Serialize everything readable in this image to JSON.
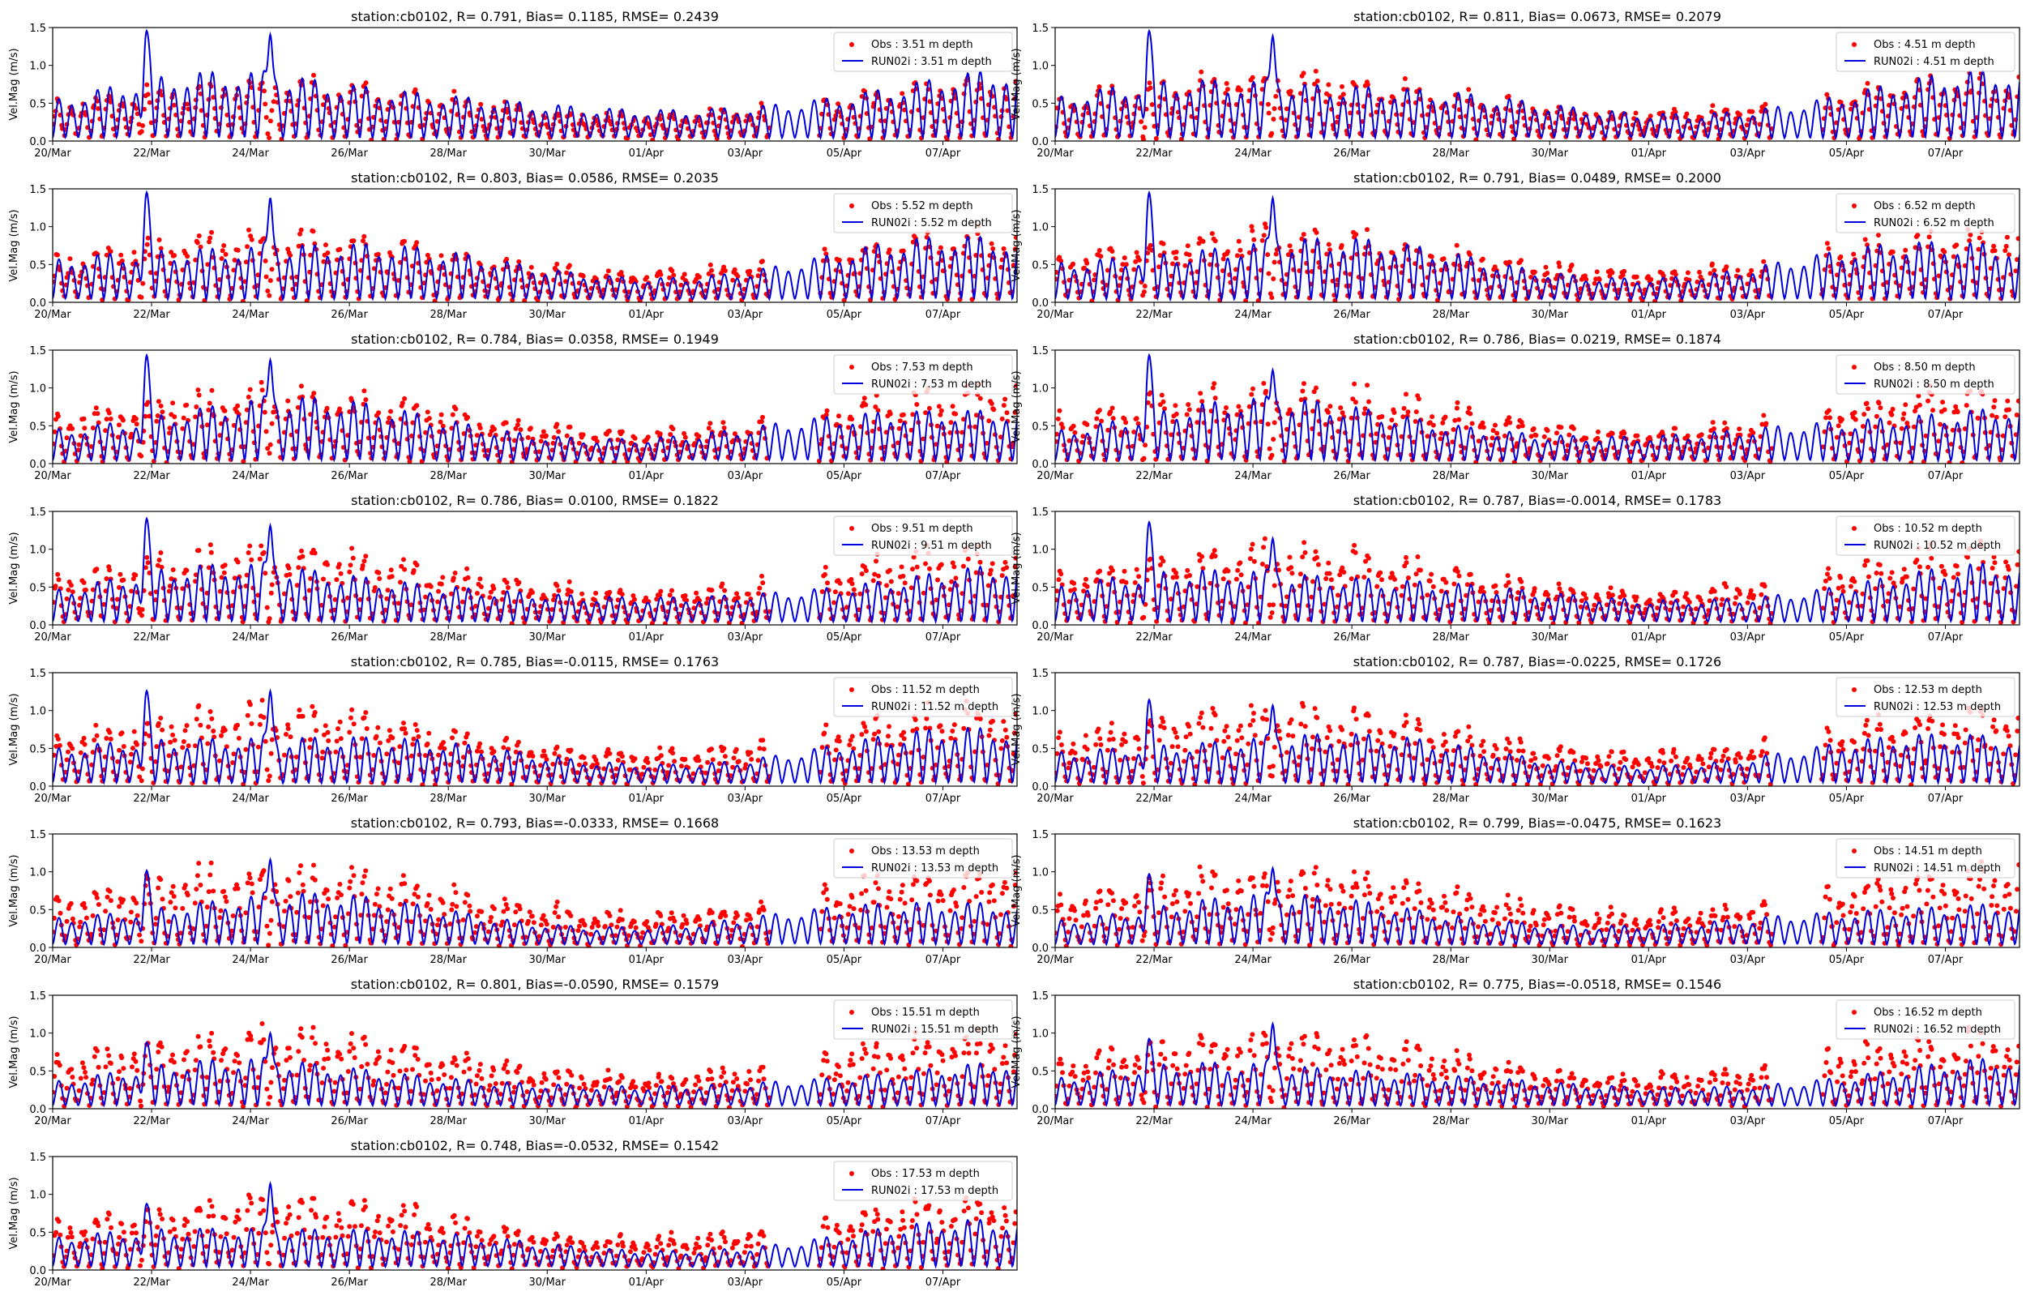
{
  "figure": {
    "time_axis": {
      "start": "2023-03-20",
      "end": "2023-04-08T12:00",
      "tick_labels": [
        "20/Mar",
        "22/Mar",
        "24/Mar",
        "26/Mar",
        "28/Mar",
        "30/Mar",
        "01/Apr",
        "03/Apr",
        "05/Apr",
        "07/Apr"
      ]
    },
    "colors": {
      "obs": "#ff0000",
      "model": "#0000dd"
    }
  },
  "chart_data": [
    {
      "type": "line",
      "title": "station:cb0102, R= 0.791, Bias= 0.1185, RMSE= 0.2439",
      "ylabel": "Vel.Mag (m/s)",
      "ylim": [
        0,
        1.5
      ],
      "yticks": [
        "0.0",
        "0.5",
        "1.0",
        "1.5"
      ],
      "series": [
        {
          "name": "Obs : 3.51 m depth",
          "style": "markers",
          "color": "#ff0000",
          "amplitude": 0.5,
          "spikes": []
        },
        {
          "name": "RUN02i : 3.51 m depth",
          "style": "line",
          "color": "#0000dd",
          "amplitude": 0.62,
          "spikes": [
            {
              "day": 1.9,
              "value": 1.5
            },
            {
              "day": 4.4,
              "value": 1.48
            }
          ]
        }
      ]
    },
    {
      "type": "line",
      "title": "station:cb0102, R= 0.811, Bias= 0.0673, RMSE= 0.2079",
      "ylabel": "Vel.Mag (m/s)",
      "ylim": [
        0,
        1.5
      ],
      "yticks": [
        "0.0",
        "0.5",
        "1.0",
        "1.5"
      ],
      "series": [
        {
          "name": "Obs : 4.51 m depth",
          "style": "markers",
          "color": "#ff0000",
          "amplitude": 0.55,
          "spikes": []
        },
        {
          "name": "RUN02i : 4.51 m depth",
          "style": "line",
          "color": "#0000dd",
          "amplitude": 0.6,
          "spikes": [
            {
              "day": 1.9,
              "value": 1.5
            },
            {
              "day": 4.4,
              "value": 1.46
            }
          ]
        }
      ]
    },
    {
      "type": "line",
      "title": "station:cb0102, R= 0.803, Bias= 0.0586, RMSE= 0.2035",
      "ylabel": "Vel.Mag (m/s)",
      "ylim": [
        0,
        1.5
      ],
      "yticks": [
        "0.0",
        "0.5",
        "1.0",
        "1.5"
      ],
      "series": [
        {
          "name": "Obs : 5.52 m depth",
          "style": "markers",
          "color": "#ff0000",
          "amplitude": 0.58,
          "spikes": []
        },
        {
          "name": "RUN02i : 5.52 m depth",
          "style": "line",
          "color": "#0000dd",
          "amplitude": 0.58,
          "spikes": [
            {
              "day": 1.9,
              "value": 1.5
            },
            {
              "day": 4.4,
              "value": 1.45
            }
          ]
        }
      ]
    },
    {
      "type": "line",
      "title": "station:cb0102, R= 0.791, Bias= 0.0489, RMSE= 0.2000",
      "ylabel": "Vel.Mag (m/s)",
      "ylim": [
        0,
        1.5
      ],
      "yticks": [
        "0.0",
        "0.5",
        "1.0",
        "1.5"
      ],
      "series": [
        {
          "name": "Obs : 6.52 m depth",
          "style": "markers",
          "color": "#ff0000",
          "amplitude": 0.6,
          "spikes": []
        },
        {
          "name": "RUN02i : 6.52 m depth",
          "style": "line",
          "color": "#0000dd",
          "amplitude": 0.58,
          "spikes": [
            {
              "day": 1.9,
              "value": 1.5
            },
            {
              "day": 4.4,
              "value": 1.45
            }
          ]
        }
      ]
    },
    {
      "type": "line",
      "title": "station:cb0102, R= 0.784, Bias= 0.0358, RMSE= 0.1949",
      "ylabel": "Vel.Mag (m/s)",
      "ylim": [
        0,
        1.5
      ],
      "yticks": [
        "0.0",
        "0.5",
        "1.0",
        "1.5"
      ],
      "series": [
        {
          "name": "Obs : 7.53 m depth",
          "style": "markers",
          "color": "#ff0000",
          "amplitude": 0.62,
          "spikes": []
        },
        {
          "name": "RUN02i : 7.53 m depth",
          "style": "line",
          "color": "#0000dd",
          "amplitude": 0.56,
          "spikes": [
            {
              "day": 1.9,
              "value": 1.48
            },
            {
              "day": 4.4,
              "value": 1.44
            }
          ]
        }
      ]
    },
    {
      "type": "line",
      "title": "station:cb0102, R= 0.786, Bias= 0.0219, RMSE= 0.1874",
      "ylabel": "Vel.Mag (m/s)",
      "ylim": [
        0,
        1.5
      ],
      "yticks": [
        "0.0",
        "0.5",
        "1.0",
        "1.5"
      ],
      "series": [
        {
          "name": "Obs : 8.50 m depth",
          "style": "markers",
          "color": "#ff0000",
          "amplitude": 0.63,
          "spikes": []
        },
        {
          "name": "RUN02i : 8.50 m depth",
          "style": "line",
          "color": "#0000dd",
          "amplitude": 0.55,
          "spikes": [
            {
              "day": 1.9,
              "value": 1.48
            },
            {
              "day": 4.4,
              "value": 1.3
            }
          ]
        }
      ]
    },
    {
      "type": "line",
      "title": "station:cb0102, R= 0.786, Bias= 0.0100, RMSE= 0.1822",
      "ylabel": "Vel.Mag (m/s)",
      "ylim": [
        0,
        1.5
      ],
      "yticks": [
        "0.0",
        "0.5",
        "1.0",
        "1.5"
      ],
      "series": [
        {
          "name": "Obs : 9.51 m depth",
          "style": "markers",
          "color": "#ff0000",
          "amplitude": 0.64,
          "spikes": []
        },
        {
          "name": "RUN02i : 9.51 m depth",
          "style": "line",
          "color": "#0000dd",
          "amplitude": 0.53,
          "spikes": [
            {
              "day": 1.9,
              "value": 1.45
            },
            {
              "day": 4.4,
              "value": 1.38
            }
          ]
        }
      ]
    },
    {
      "type": "line",
      "title": "station:cb0102, R= 0.787, Bias=-0.0014, RMSE= 0.1783",
      "ylabel": "Vel.Mag (m/s)",
      "ylim": [
        0,
        1.5
      ],
      "yticks": [
        "0.0",
        "0.5",
        "1.0",
        "1.5"
      ],
      "series": [
        {
          "name": "Obs : 10.52 m depth",
          "style": "markers",
          "color": "#ff0000",
          "amplitude": 0.65,
          "spikes": []
        },
        {
          "name": "RUN02i : 10.52 m depth",
          "style": "line",
          "color": "#0000dd",
          "amplitude": 0.52,
          "spikes": [
            {
              "day": 1.9,
              "value": 1.4
            },
            {
              "day": 4.4,
              "value": 1.2
            }
          ]
        }
      ]
    },
    {
      "type": "line",
      "title": "station:cb0102, R= 0.785, Bias=-0.0115, RMSE= 0.1763",
      "ylabel": "Vel.Mag (m/s)",
      "ylim": [
        0,
        1.5
      ],
      "yticks": [
        "0.0",
        "0.5",
        "1.0",
        "1.5"
      ],
      "series": [
        {
          "name": "Obs : 11.52 m depth",
          "style": "markers",
          "color": "#ff0000",
          "amplitude": 0.66,
          "spikes": []
        },
        {
          "name": "RUN02i : 11.52 m depth",
          "style": "line",
          "color": "#0000dd",
          "amplitude": 0.5,
          "spikes": [
            {
              "day": 1.9,
              "value": 1.3
            },
            {
              "day": 4.4,
              "value": 1.32
            }
          ]
        }
      ]
    },
    {
      "type": "line",
      "title": "station:cb0102, R= 0.787, Bias=-0.0225, RMSE= 0.1726",
      "ylabel": "Vel.Mag (m/s)",
      "ylim": [
        0,
        1.5
      ],
      "yticks": [
        "0.0",
        "0.5",
        "1.0",
        "1.5"
      ],
      "series": [
        {
          "name": "Obs : 12.53 m depth",
          "style": "markers",
          "color": "#ff0000",
          "amplitude": 0.66,
          "spikes": []
        },
        {
          "name": "RUN02i : 12.53 m depth",
          "style": "line",
          "color": "#0000dd",
          "amplitude": 0.48,
          "spikes": [
            {
              "day": 1.9,
              "value": 1.18
            },
            {
              "day": 4.4,
              "value": 1.12
            }
          ]
        }
      ]
    },
    {
      "type": "line",
      "title": "station:cb0102, R= 0.793, Bias=-0.0333, RMSE= 0.1668",
      "ylabel": "Vel.Mag (m/s)",
      "ylim": [
        0,
        1.5
      ],
      "yticks": [
        "0.0",
        "0.5",
        "1.0",
        "1.5"
      ],
      "series": [
        {
          "name": "Obs : 13.53 m depth",
          "style": "markers",
          "color": "#ff0000",
          "amplitude": 0.66,
          "spikes": []
        },
        {
          "name": "RUN02i : 13.53 m depth",
          "style": "line",
          "color": "#0000dd",
          "amplitude": 0.46,
          "spikes": [
            {
              "day": 1.9,
              "value": 1.05
            },
            {
              "day": 4.4,
              "value": 1.22
            }
          ]
        }
      ]
    },
    {
      "type": "line",
      "title": "station:cb0102, R= 0.799, Bias=-0.0475, RMSE= 0.1623",
      "ylabel": "Vel.Mag (m/s)",
      "ylim": [
        0,
        1.5
      ],
      "yticks": [
        "0.0",
        "0.5",
        "1.0",
        "1.5"
      ],
      "series": [
        {
          "name": "Obs : 14.51 m depth",
          "style": "markers",
          "color": "#ff0000",
          "amplitude": 0.66,
          "spikes": []
        },
        {
          "name": "RUN02i : 14.51 m depth",
          "style": "line",
          "color": "#0000dd",
          "amplitude": 0.44,
          "spikes": [
            {
              "day": 1.9,
              "value": 1.0
            },
            {
              "day": 4.4,
              "value": 1.1
            }
          ]
        }
      ]
    },
    {
      "type": "line",
      "title": "station:cb0102, R= 0.801, Bias=-0.0590, RMSE= 0.1579",
      "ylabel": "Vel.Mag (m/s)",
      "ylim": [
        0,
        1.5
      ],
      "yticks": [
        "0.0",
        "0.5",
        "1.0",
        "1.5"
      ],
      "series": [
        {
          "name": "Obs : 15.51 m depth",
          "style": "markers",
          "color": "#ff0000",
          "amplitude": 0.64,
          "spikes": []
        },
        {
          "name": "RUN02i : 15.51 m depth",
          "style": "line",
          "color": "#0000dd",
          "amplitude": 0.42,
          "spikes": [
            {
              "day": 1.9,
              "value": 0.9
            },
            {
              "day": 4.4,
              "value": 1.05
            }
          ]
        }
      ]
    },
    {
      "type": "line",
      "title": "station:cb0102, R= 0.775, Bias=-0.0518, RMSE= 0.1546",
      "ylabel": "Vel.Mag (m/s)",
      "ylim": [
        0,
        1.5
      ],
      "yticks": [
        "0.0",
        "0.5",
        "1.0",
        "1.5"
      ],
      "series": [
        {
          "name": "Obs : 16.52 m depth",
          "style": "markers",
          "color": "#ff0000",
          "amplitude": 0.62,
          "spikes": []
        },
        {
          "name": "RUN02i : 16.52 m depth",
          "style": "line",
          "color": "#0000dd",
          "amplitude": 0.42,
          "spikes": [
            {
              "day": 1.9,
              "value": 0.95
            },
            {
              "day": 4.4,
              "value": 1.18
            }
          ]
        }
      ]
    },
    {
      "type": "line",
      "title": "station:cb0102, R= 0.748, Bias=-0.0532, RMSE= 0.1542",
      "ylabel": "Vel.Mag (m/s)",
      "ylim": [
        0,
        1.5
      ],
      "yticks": [
        "0.0",
        "0.5",
        "1.0",
        "1.5"
      ],
      "series": [
        {
          "name": "Obs : 17.53 m depth",
          "style": "markers",
          "color": "#ff0000",
          "amplitude": 0.6,
          "spikes": []
        },
        {
          "name": "RUN02i : 17.53 m depth",
          "style": "line",
          "color": "#0000dd",
          "amplitude": 0.42,
          "spikes": [
            {
              "day": 1.9,
              "value": 0.9
            },
            {
              "day": 4.4,
              "value": 1.2
            }
          ]
        }
      ]
    }
  ]
}
